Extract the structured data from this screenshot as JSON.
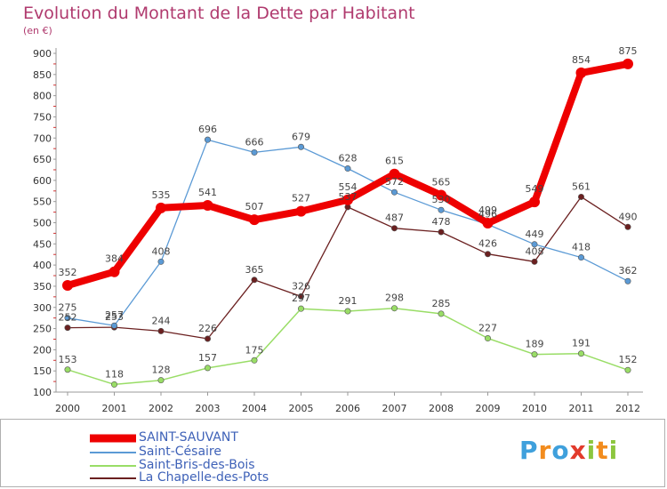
{
  "header": {
    "title": "Evolution du Montant de la Dette par Habitant",
    "unit": "(en €)"
  },
  "chart_data": {
    "type": "line",
    "title": "Evolution du Montant de la Dette par Habitant",
    "ylabel": "(en €)",
    "xlabel": "",
    "x": [
      "2000",
      "2001",
      "2002",
      "2003",
      "2004",
      "2005",
      "2006",
      "2007",
      "2008",
      "2009",
      "2010",
      "2011",
      "2012"
    ],
    "y_ticks": [
      "100",
      "150",
      "200",
      "250",
      "300",
      "350",
      "400",
      "450",
      "500",
      "550",
      "600",
      "650",
      "700",
      "750",
      "800",
      "850",
      "900"
    ],
    "ylim": [
      100,
      900
    ],
    "grid": false,
    "legend_position": "bottom-left",
    "series": [
      {
        "name": "SAINT-SAUVANT",
        "color": "#ee0000",
        "values": [
          352,
          384,
          535,
          541,
          507,
          527,
          554,
          615,
          565,
          499,
          549,
          854,
          875
        ]
      },
      {
        "name": "Saint-Césaire",
        "color": "#5b9ad5",
        "values": [
          275,
          257,
          408,
          696,
          666,
          679,
          628,
          572,
          530,
          496,
          449,
          418,
          362
        ]
      },
      {
        "name": "Saint-Bris-des-Bois",
        "color": "#99dd66",
        "values": [
          153,
          118,
          128,
          157,
          175,
          297,
          291,
          298,
          285,
          227,
          189,
          191,
          152
        ]
      },
      {
        "name": "La Chapelle-des-Pots",
        "color": "#6b2020",
        "values": [
          252,
          253,
          244,
          226,
          365,
          326,
          537,
          487,
          478,
          426,
          408,
          561,
          490
        ]
      }
    ]
  },
  "legend": {
    "items": [
      {
        "label": "SAINT-SAUVANT",
        "color": "#ee0000"
      },
      {
        "label": "Saint-Césaire",
        "color": "#5b9ad5"
      },
      {
        "label": "Saint-Bris-des-Bois",
        "color": "#99dd66"
      },
      {
        "label": "La Chapelle-des-Pots",
        "color": "#6b2020"
      }
    ]
  },
  "logo": {
    "letters": [
      "P",
      "r",
      "o",
      "x",
      "i",
      "t",
      "i"
    ],
    "colors": [
      "#3fa0dc",
      "#f28c1e",
      "#3fa0dc",
      "#e23b2c",
      "#8cc63e",
      "#f28c1e",
      "#8cc63e"
    ]
  }
}
